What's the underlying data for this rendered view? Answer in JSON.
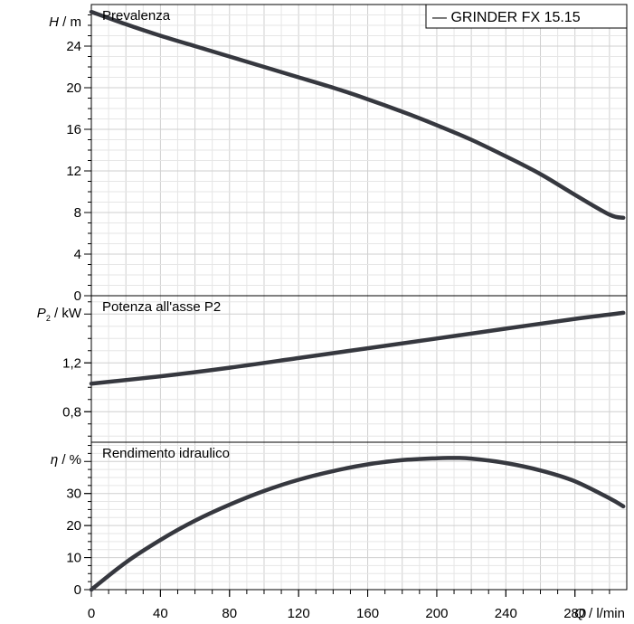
{
  "chart_data": {
    "type": "line",
    "legend": {
      "entry": "GRINDER FX 15.15",
      "placement": "top-right"
    },
    "x_axis": {
      "label_symbol": "Q",
      "label_unit": "/ l/min",
      "range": [
        0,
        310
      ],
      "ticks": [
        "0",
        "40",
        "80",
        "120",
        "160",
        "200",
        "240",
        "280"
      ],
      "tick_values": [
        0,
        40,
        80,
        120,
        160,
        200,
        240,
        280
      ]
    },
    "panels": [
      {
        "title": "Prevalenza",
        "y_symbol": "H",
        "y_unit": "/ m",
        "ylim": [
          0,
          28
        ],
        "ticks": [
          "0",
          "4",
          "8",
          "12",
          "16",
          "20",
          "24"
        ],
        "tick_values": [
          0,
          4,
          8,
          12,
          16,
          20,
          24
        ],
        "grid": true,
        "series": [
          {
            "name": "GRINDER FX 15.15",
            "x": [
              0,
              20,
              40,
              60,
              80,
              100,
              120,
              140,
              160,
              180,
              200,
              220,
              240,
              260,
              280,
              300,
              308
            ],
            "y": [
              27.3,
              26.1,
              25.0,
              24.0,
              23.0,
              22.0,
              21.0,
              20.0,
              18.9,
              17.7,
              16.4,
              15.0,
              13.4,
              11.7,
              9.7,
              7.8,
              7.5
            ]
          }
        ]
      },
      {
        "title": "Potenza all'asse P2",
        "y_symbol": "P",
        "y_subscript": "2",
        "y_unit": "/ kW",
        "ylim": [
          0.55,
          1.75
        ],
        "ticks": [
          "0,8",
          "1,2"
        ],
        "tick_values": [
          0.8,
          1.2
        ],
        "grid": true,
        "series": [
          {
            "name": "GRINDER FX 15.15",
            "x": [
              0,
              40,
              80,
              120,
              160,
              200,
              240,
              280,
              308
            ],
            "y": [
              1.03,
              1.09,
              1.16,
              1.24,
              1.32,
              1.4,
              1.48,
              1.56,
              1.61
            ]
          }
        ]
      },
      {
        "title": "Rendimento idraulico",
        "y_symbol": "η",
        "y_unit": "/ %",
        "ylim": [
          0,
          46
        ],
        "ticks": [
          "0",
          "10",
          "20",
          "30"
        ],
        "tick_values": [
          0,
          10,
          20,
          30
        ],
        "grid": true,
        "series": [
          {
            "name": "GRINDER FX 15.15",
            "x": [
              0,
              20,
              40,
              60,
              80,
              100,
              120,
              140,
              160,
              180,
              200,
              208,
              220,
              240,
              260,
              280,
              300,
              308
            ],
            "y": [
              0,
              8.5,
              15.5,
              21.5,
              26.5,
              30.8,
              34.3,
              37.0,
              39.1,
              40.4,
              41.0,
              41.1,
              40.9,
              39.5,
              37.2,
              33.8,
              28.5,
              26.0
            ]
          }
        ]
      }
    ]
  }
}
